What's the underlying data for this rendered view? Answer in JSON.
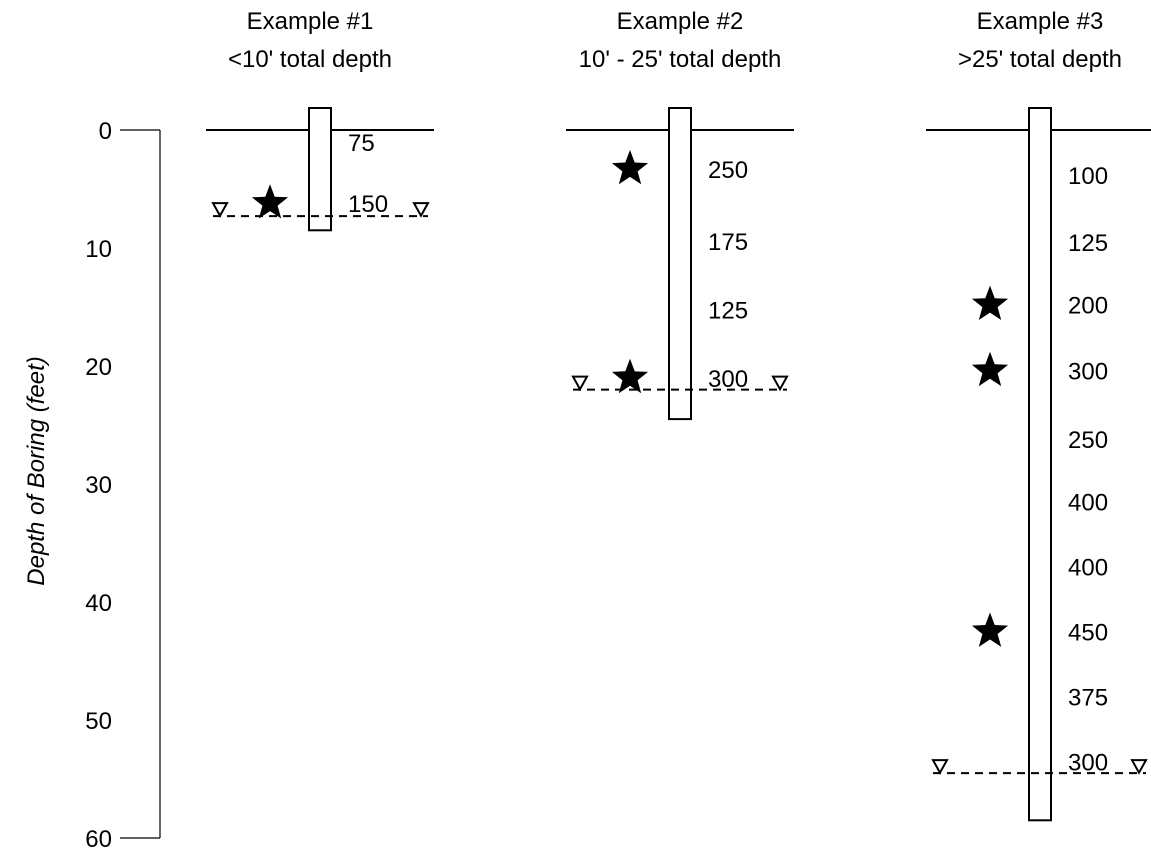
{
  "axis": {
    "label": "Depth of Boring (feet)",
    "range": [
      0,
      60
    ],
    "ticks": [
      "0",
      "10",
      "20",
      "30",
      "40",
      "50",
      "60"
    ]
  },
  "examples": [
    {
      "title_line1": "Example #1",
      "title_line2": "<10' total depth",
      "boring_bottom_depth": 8.5,
      "water_table_depth": 7.3,
      "readings": [
        {
          "label": "75",
          "depth": 1.0,
          "star": false
        },
        {
          "label": "150",
          "depth": 6.2,
          "star": true
        }
      ]
    },
    {
      "title_line1": "Example #2",
      "title_line2": "10' - 25' total depth",
      "boring_bottom_depth": 24.5,
      "water_table_depth": 22.0,
      "readings": [
        {
          "label": "250",
          "depth": 3.3,
          "star": true
        },
        {
          "label": "175",
          "depth": 9.4,
          "star": false
        },
        {
          "label": "125",
          "depth": 15.2,
          "star": false
        },
        {
          "label": "300",
          "depth": 21.0,
          "star": true
        }
      ]
    },
    {
      "title_line1": "Example #3",
      "title_line2": ">25' total depth",
      "boring_bottom_depth": 58.5,
      "water_table_depth": 54.5,
      "readings": [
        {
          "label": "100",
          "depth": 3.8,
          "star": false
        },
        {
          "label": "125",
          "depth": 9.5,
          "star": false
        },
        {
          "label": "200",
          "depth": 14.8,
          "star": true
        },
        {
          "label": "300",
          "depth": 20.4,
          "star": true
        },
        {
          "label": "250",
          "depth": 26.2,
          "star": false
        },
        {
          "label": "400",
          "depth": 31.5,
          "star": false
        },
        {
          "label": "400",
          "depth": 37.0,
          "star": false
        },
        {
          "label": "450",
          "depth": 42.5,
          "star": true
        },
        {
          "label": "375",
          "depth": 48.0,
          "star": false
        },
        {
          "label": "300",
          "depth": 53.5,
          "star": false
        }
      ]
    }
  ]
}
